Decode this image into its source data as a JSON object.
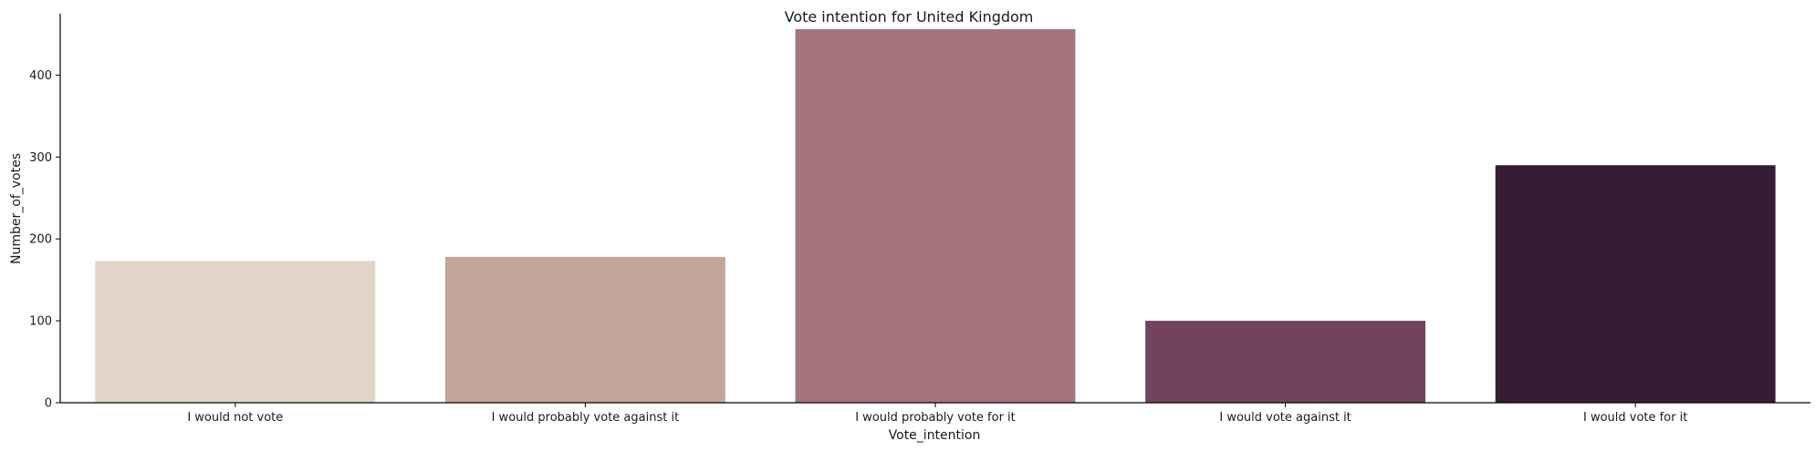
{
  "chart_data": {
    "type": "bar",
    "title": "Vote intention for United Kingdom",
    "xlabel": "Vote_intention",
    "ylabel": "Number_of_votes",
    "categories": [
      "I would not vote",
      "I would probably vote against it",
      "I would probably vote for it",
      "I would vote against it",
      "I would vote for it"
    ],
    "values": [
      173,
      178,
      456,
      100,
      290
    ],
    "colors": [
      "#e2d5c7",
      "#c5a59a",
      "#a5737b",
      "#73435e",
      "#351e33"
    ],
    "ylim": [
      0,
      475
    ],
    "yticks": [
      0,
      100,
      200,
      300,
      400
    ],
    "grid": false,
    "legend": "none"
  }
}
